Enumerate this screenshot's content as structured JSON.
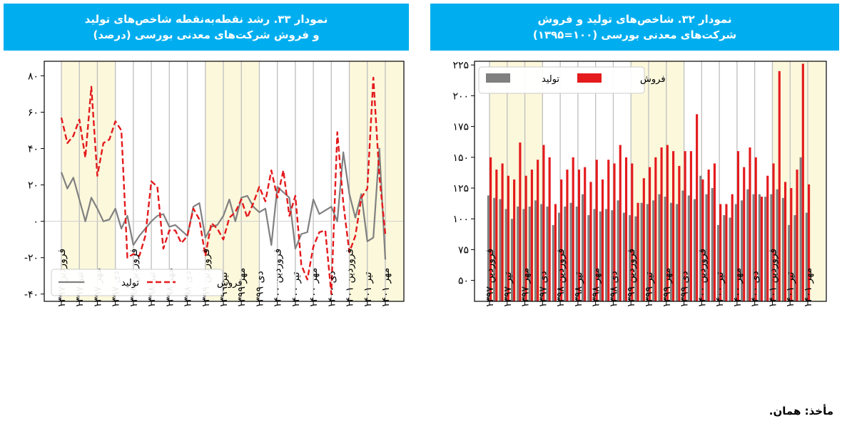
{
  "headers": {
    "left": [
      "نمودار ۳۳. رشد نقطه‌به‌نقطه شاخص‌های تولید",
      "و فروش شرکت‌های معدنی بورسی (درصد)"
    ],
    "right": [
      "نمودار ۳۲. شاخص‌های تولید و فروش",
      "شرکت‌های معدنی بورسی (۱۰۰=۱۳۹۵)"
    ]
  },
  "source": "مأخذ: همان.",
  "colors": {
    "header_bg": "#00aeef",
    "production": "#808080",
    "sales": "#e41a1c",
    "band": "#fbf8dc",
    "grid": "#bfbfbf"
  },
  "chart_data": [
    {
      "id": "growth",
      "type": "line",
      "title": "نمودار ۳۳. رشد نقطه‌به‌نقطه شاخص‌های تولید و فروش شرکت‌های معدنی بورسی (درصد)",
      "ylim": [
        -44,
        88
      ],
      "yticks": [
        -40,
        -20,
        0,
        20,
        40,
        60,
        80
      ],
      "ytick_labels": [
        "-۴۰",
        "-۲۰",
        "۰",
        "۲۰",
        "۴۰",
        "۶۰",
        "۸۰"
      ],
      "n_points": 55,
      "x_tick_labels": [
        "فروردین ۱۳۹۷",
        "تیر ۱۳۹۷",
        "مهر ۱۳۹۷",
        "دی ۱۳۹۷",
        "فروردین ۱۳۹۸",
        "تیر ۱۳۹۸",
        "مهر ۱۳۹۸",
        "دی ۱۳۹۸",
        "فروردین ۱۳۹۹",
        "تیر ۱۳۹۹",
        "مهر ۱۳۹۹",
        "دی ۱۳۹۹",
        "فروردین ۱۴۰۰",
        "تیر ۱۴۰۰",
        "مهر ۱۴۰۰",
        "دی ۱۴۰۰",
        "فروردین ۱۴۰۱",
        "تیر ۱۴۰۱",
        "مهر ۱۴۰۱"
      ],
      "legend": {
        "production": "تولید",
        "sales": "فروش"
      },
      "series": [
        {
          "name": "تولید",
          "style": "solid",
          "values": [
            27,
            18,
            24,
            12,
            0,
            13,
            7,
            0,
            1,
            7,
            -4,
            3,
            -13,
            -8,
            -4,
            0,
            3,
            4,
            -3,
            -2,
            -5,
            -8,
            8,
            10,
            -9,
            -3,
            -2,
            3,
            12,
            0,
            13,
            14,
            8,
            5,
            7,
            -13,
            19,
            16,
            13,
            -15,
            -7,
            -6,
            12,
            4,
            6,
            8,
            0,
            38,
            15,
            2,
            15,
            -11,
            -9,
            40,
            -21
          ]
        },
        {
          "name": "فروش",
          "style": "dashed",
          "values": [
            57,
            43,
            47,
            56,
            35,
            74,
            25,
            43,
            45,
            55,
            50,
            -20,
            -18,
            -19,
            -8,
            22,
            19,
            -15,
            -5,
            -5,
            -12,
            -8,
            7,
            1,
            -19,
            -1,
            -4,
            -10,
            2,
            5,
            12,
            2,
            10,
            19,
            11,
            28,
            13,
            28,
            3,
            14,
            -24,
            -32,
            -14,
            -6,
            -5,
            -40,
            49,
            10,
            -17,
            -8,
            13,
            18,
            79,
            25,
            -7
          ]
        }
      ]
    },
    {
      "id": "index",
      "type": "bar",
      "title": "نمودار ۳۲. شاخص‌های تولید و فروش شرکت‌های معدنی بورسی (۱۰۰=۱۳۹۵)",
      "ylim": [
        33,
        228
      ],
      "yticks": [
        50,
        75,
        100,
        125,
        150,
        175,
        200,
        225
      ],
      "ytick_labels": [
        "۵۰",
        "۷۵",
        "۱۰۰",
        "۱۲۵",
        "۱۵۰",
        "۱۷۵",
        "۲۰۰",
        "۲۲۵"
      ],
      "n_points": 55,
      "x_tick_labels": [
        "فروردین ۱۳۹۷",
        "تیر ۱۳۹۷",
        "مهر ۱۳۹۷",
        "دی ۱۳۹۷",
        "فروردین ۱۳۹۸",
        "تیر ۱۳۹۸",
        "مهر ۱۳۹۸",
        "دی ۱۳۹۸",
        "فروردین ۱۳۹۹",
        "تیر ۱۳۹۹",
        "مهر ۱۳۹۹",
        "دی ۱۳۹۹",
        "فروردین ۱۴۰۰",
        "تیر ۱۴۰۰",
        "مهر ۱۴۰۰",
        "دی ۱۴۰۰",
        "فروردین ۱۴۰۱",
        "تیر ۱۴۰۱",
        "مهر ۱۴۰۱"
      ],
      "legend": {
        "production": "تولید",
        "sales": "فروش"
      },
      "series": [
        {
          "name": "تولید",
          "values": [
            119,
            117,
            116,
            108,
            100,
            110,
            108,
            110,
            115,
            112,
            110,
            95,
            105,
            110,
            113,
            110,
            120,
            103,
            108,
            106,
            108,
            107,
            115,
            105,
            103,
            102,
            113,
            112,
            115,
            120,
            118,
            113,
            112,
            123,
            119,
            116,
            135,
            120,
            125,
            95,
            103,
            101,
            112,
            115,
            124,
            120,
            120,
            118,
            120,
            124,
            117,
            95,
            103,
            150,
            105
          ]
        },
        {
          "name": "فروش",
          "values": [
            150,
            140,
            145,
            135,
            132,
            162,
            135,
            140,
            148,
            160,
            150,
            112,
            132,
            140,
            150,
            140,
            142,
            130,
            148,
            132,
            148,
            145,
            160,
            150,
            145,
            113,
            133,
            142,
            150,
            158,
            160,
            155,
            143,
            155,
            155,
            185,
            132,
            140,
            145,
            112,
            112,
            120,
            155,
            142,
            158,
            150,
            118,
            135,
            145,
            220,
            130,
            125,
            140,
            226,
            128
          ]
        }
      ]
    }
  ]
}
